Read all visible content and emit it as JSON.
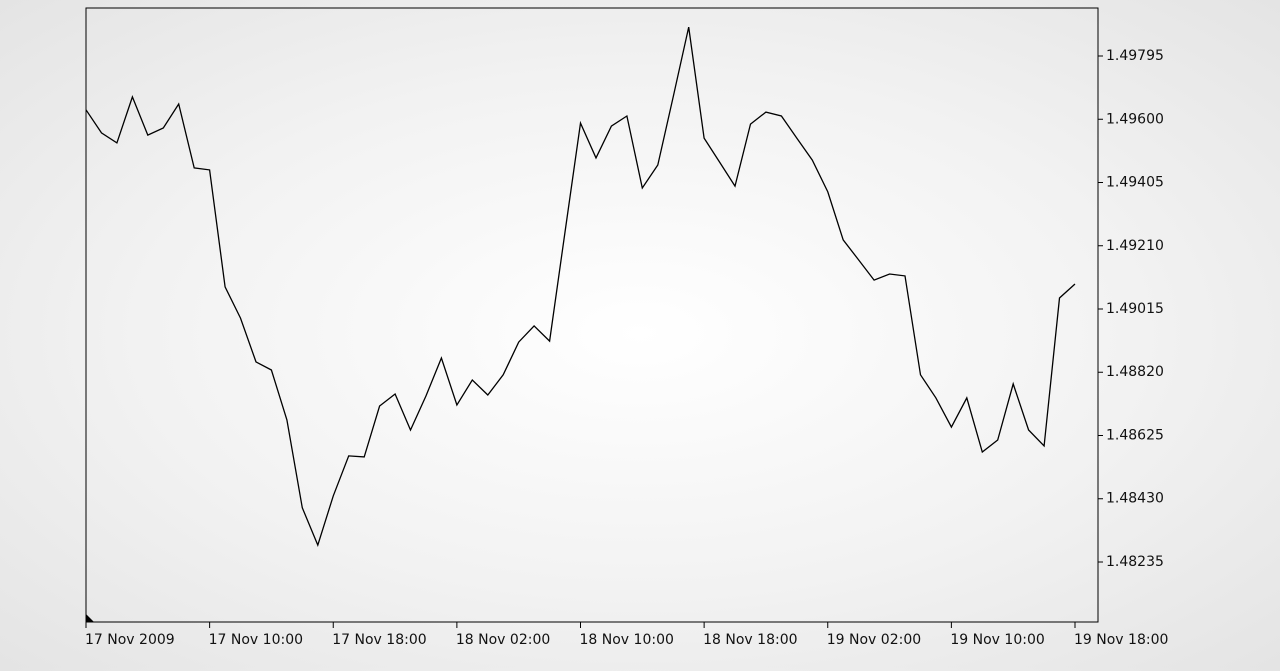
{
  "chart_data": {
    "type": "line",
    "categories": [
      "17 Nov 2009",
      null,
      null,
      null,
      null,
      null,
      null,
      null,
      "17 Nov 10:00",
      null,
      null,
      null,
      null,
      null,
      null,
      null,
      "17 Nov 18:00",
      null,
      null,
      null,
      null,
      null,
      null,
      null,
      "18 Nov 02:00",
      null,
      null,
      null,
      null,
      null,
      null,
      null,
      "18 Nov 10:00",
      null,
      null,
      null,
      null,
      null,
      null,
      null,
      "18 Nov 18:00",
      null,
      null,
      null,
      null,
      null,
      null,
      null,
      "19 Nov 02:00",
      null,
      null,
      null,
      null,
      null,
      null,
      null,
      "19 Nov 10:00",
      null,
      null,
      null,
      null,
      null,
      null,
      null,
      "19 Nov 18:00"
    ],
    "values": [
      1.49629,
      1.49558,
      1.49527,
      1.49669,
      1.49551,
      1.49573,
      1.49647,
      1.4945,
      1.49444,
      1.49083,
      1.48987,
      1.48852,
      1.48827,
      1.48673,
      1.48402,
      1.48287,
      1.48439,
      1.48562,
      1.48559,
      1.48716,
      1.48753,
      1.48642,
      1.48747,
      1.48864,
      1.48719,
      1.48796,
      1.4875,
      1.48812,
      1.48913,
      1.48963,
      1.48916,
      1.49252,
      1.49588,
      1.49481,
      1.49579,
      1.4961,
      1.49388,
      1.49459,
      1.49669,
      1.49884,
      1.49542,
      1.49468,
      1.49394,
      1.49585,
      1.49622,
      1.4961,
      1.49542,
      1.49474,
      1.49376,
      1.49228,
      1.49166,
      1.49104,
      1.49123,
      1.49117,
      1.48812,
      1.48741,
      1.48651,
      1.48741,
      1.48574,
      1.48611,
      1.48784,
      1.48642,
      1.48593,
      1.49049,
      1.49092
    ],
    "color": "#000000",
    "ylim": [
      1.4805,
      1.49943
    ],
    "yticks": [
      1.49795,
      {
        "value": 1.496,
        "label": "1.49600"
      },
      1.49405,
      {
        "value": 1.4921,
        "label": "1.49210"
      },
      1.49015,
      {
        "value": 1.4882,
        "label": "1.48820"
      },
      1.48625,
      {
        "value": 1.4843,
        "label": "1.48430"
      },
      1.48235
    ],
    "y_axis_side": "right"
  }
}
